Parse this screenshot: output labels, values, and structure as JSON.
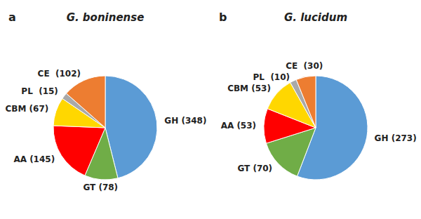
{
  "chart_data": [
    {
      "type": "pie",
      "title": "G. boninense",
      "annotations": [
        "a"
      ],
      "categories": [
        "GH (348)",
        "GT (78)",
        "AA (145)",
        "CBM (67)",
        "PL  (15)",
        "CE  (102)"
      ],
      "values": [
        348,
        78,
        145,
        67,
        15,
        102
      ],
      "colors": [
        "#5B9BD5",
        "#70AD47",
        "#FF0000",
        "#FFD700",
        "#A9A9A9",
        "#ED7D31"
      ]
    },
    {
      "type": "pie",
      "title": "G. lucidum",
      "annotations": [
        "b"
      ],
      "categories": [
        "GH (273)",
        "GT (70)",
        "AA (53)",
        "CBM (53)",
        "PL  (10)",
        "CE  (30)"
      ],
      "values": [
        273,
        70,
        53,
        53,
        10,
        30
      ],
      "colors": [
        "#5B9BD5",
        "#70AD47",
        "#FF0000",
        "#FFD700",
        "#A9A9A9",
        "#ED7D31"
      ]
    }
  ]
}
